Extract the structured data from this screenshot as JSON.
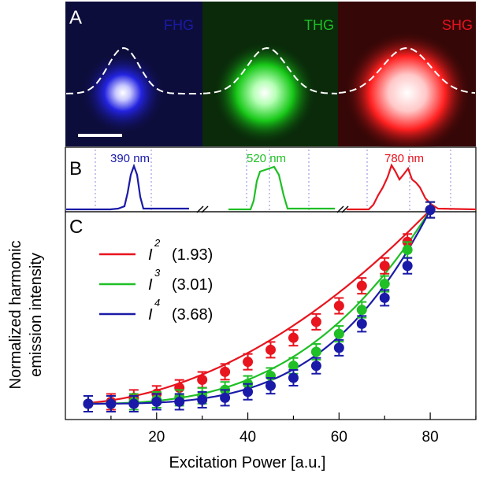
{
  "colors": {
    "red": "#e8141e",
    "green": "#1fbf25",
    "blue": "#1a1aa8"
  },
  "panel_a": {
    "letter": "A",
    "images": [
      {
        "label": "FHG",
        "color": "#1a1aa8",
        "channel": "blue"
      },
      {
        "label": "THG",
        "color": "#1fbf25",
        "channel": "green"
      },
      {
        "label": "SHG",
        "color": "#e8141e",
        "channel": "red"
      }
    ]
  },
  "panel_b": {
    "letter": "B",
    "spectra": [
      {
        "label": "390 nm",
        "color": "#1a1aa8"
      },
      {
        "label": "520 nm",
        "color": "#1fbf25"
      },
      {
        "label": "780 nm",
        "color": "#e8141e"
      }
    ]
  },
  "chart_data": {
    "type": "scatter",
    "panel_letter": "C",
    "xlabel": "Excitation Power [a.u.]",
    "ylabel_lines": [
      "Normalized harmonic",
      "emission intensity"
    ],
    "xlim": [
      0,
      90
    ],
    "ylim": [
      0,
      1.05
    ],
    "x_ticks": [
      20,
      40,
      60,
      80
    ],
    "x_tick_labels": [
      "20",
      "40",
      "60",
      "80"
    ],
    "legend": [
      {
        "base": "I",
        "exp": "2",
        "value": "(1.93)",
        "color": "#e8141e"
      },
      {
        "base": "I",
        "exp": "3",
        "value": "(3.01)",
        "color": "#1fbf25"
      },
      {
        "base": "I",
        "exp": "4",
        "value": "(3.68)",
        "color": "#1a1aa8"
      }
    ],
    "x": [
      5,
      10,
      15,
      20,
      25,
      30,
      35,
      40,
      45,
      50,
      55,
      60,
      65,
      70,
      75,
      80
    ],
    "series": [
      {
        "color": "#e8141e",
        "exponent": 1.93,
        "values": [
          0.0,
          0.01,
          0.03,
          0.05,
          0.08,
          0.12,
          0.16,
          0.21,
          0.27,
          0.33,
          0.41,
          0.49,
          0.59,
          0.69,
          0.81,
          0.97
        ]
      },
      {
        "color": "#1fbf25",
        "exponent": 3.01,
        "values": [
          0.0,
          0.0,
          0.01,
          0.02,
          0.03,
          0.04,
          0.07,
          0.1,
          0.14,
          0.19,
          0.26,
          0.35,
          0.47,
          0.6,
          0.77,
          0.97
        ]
      },
      {
        "color": "#1a1aa8",
        "exponent": 3.68,
        "values": [
          0.0,
          0.0,
          0.0,
          0.01,
          0.01,
          0.02,
          0.03,
          0.06,
          0.09,
          0.13,
          0.19,
          0.28,
          0.4,
          0.53,
          0.69,
          0.97
        ]
      }
    ]
  }
}
